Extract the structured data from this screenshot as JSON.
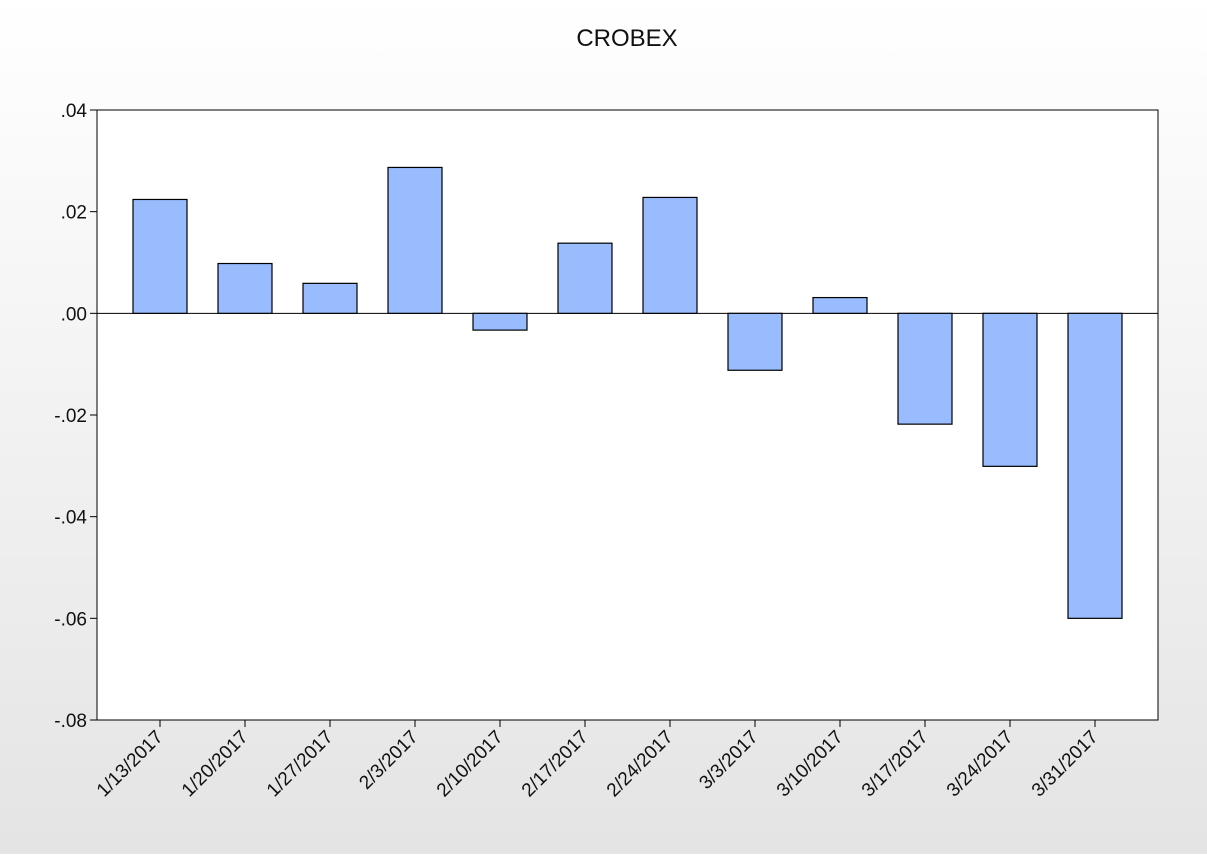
{
  "chart_data": {
    "type": "bar",
    "title": "CROBEX",
    "categories": [
      "1/13/2017",
      "1/20/2017",
      "1/27/2017",
      "2/3/2017",
      "2/10/2017",
      "2/17/2017",
      "2/24/2017",
      "3/3/2017",
      "3/10/2017",
      "3/17/2017",
      "3/24/2017",
      "3/31/2017"
    ],
    "values": [
      0.0224,
      0.0098,
      0.0059,
      0.0287,
      -0.0033,
      0.0138,
      0.0228,
      -0.0112,
      0.0031,
      -0.0218,
      -0.0301,
      -0.06
    ],
    "color": "#99bbff",
    "ylim": [
      -0.08,
      0.04
    ],
    "yticks": [
      {
        "value": -0.08,
        "label": "-.08"
      },
      {
        "value": -0.06,
        "label": "-.06"
      },
      {
        "value": -0.04,
        "label": "-.04"
      },
      {
        "value": -0.02,
        "label": "-.02"
      },
      {
        "value": 0,
        "label": ".00"
      },
      {
        "value": 0.02,
        "label": ".02"
      },
      {
        "value": 0.04,
        "label": ".04"
      }
    ],
    "grid": false
  }
}
